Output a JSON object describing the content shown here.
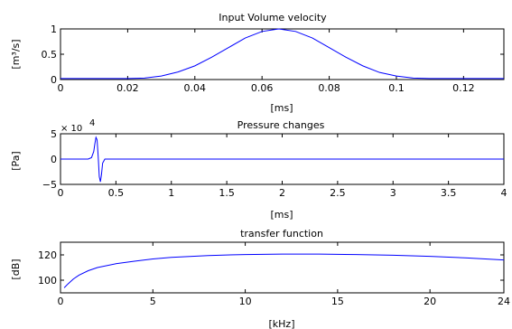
{
  "chart_data": [
    {
      "type": "line",
      "title": "Input Volume velocity",
      "xlabel": "[ms]",
      "ylabel": "[m³/s]",
      "xlim": [
        0,
        0.132
      ],
      "ylim": [
        0,
        1
      ],
      "xticks": [
        0,
        0.02,
        0.04,
        0.06,
        0.08,
        0.1,
        0.12
      ],
      "xtick_labels": [
        "0",
        "0.02",
        "0.04",
        "0.06",
        "0.08",
        "0.1",
        "0.12"
      ],
      "yticks": [
        0,
        0.5,
        1
      ],
      "ytick_labels": [
        "0",
        "0.5",
        "1"
      ],
      "grid": false,
      "color": "#0000ff",
      "series": [
        {
          "x": [
            0,
            0.005,
            0.01,
            0.015,
            0.02,
            0.025,
            0.03,
            0.035,
            0.04,
            0.045,
            0.05,
            0.055,
            0.06,
            0.065,
            0.07,
            0.075,
            0.08,
            0.085,
            0.09,
            0.095,
            0.1,
            0.105,
            0.11,
            0.115,
            0.12,
            0.125,
            0.132
          ],
          "values": [
            0.02,
            0.02,
            0.02,
            0.02,
            0.02,
            0.03,
            0.07,
            0.15,
            0.27,
            0.44,
            0.63,
            0.82,
            0.95,
            1.0,
            0.95,
            0.82,
            0.63,
            0.44,
            0.27,
            0.14,
            0.07,
            0.03,
            0.02,
            0.02,
            0.02,
            0.02,
            0.02
          ]
        }
      ]
    },
    {
      "type": "line",
      "title": "Pressure changes",
      "xlabel": "[ms]",
      "ylabel": "[Pa]",
      "y_exponent_base": "× 10",
      "y_exponent": "4",
      "xlim": [
        0,
        4
      ],
      "ylim": [
        -5,
        5
      ],
      "xticks": [
        0,
        0.5,
        1,
        1.5,
        2,
        2.5,
        3,
        3.5,
        4
      ],
      "xtick_labels": [
        "0",
        "0.5",
        "1",
        "1.5",
        "2",
        "2.5",
        "3",
        "3.5",
        "4"
      ],
      "yticks": [
        -5,
        0,
        5
      ],
      "ytick_labels": [
        "−5",
        "0",
        "5"
      ],
      "grid": false,
      "color": "#0000ff",
      "series": [
        {
          "x": [
            0,
            0.25,
            0.28,
            0.3,
            0.31,
            0.32,
            0.33,
            0.34,
            0.35,
            0.36,
            0.37,
            0.38,
            0.4,
            0.45,
            4
          ],
          "values": [
            0,
            0,
            0.3,
            1.5,
            3.0,
            4.3,
            3.8,
            0.5,
            -3.5,
            -4.5,
            -3.0,
            -0.8,
            0,
            0,
            0
          ]
        }
      ]
    },
    {
      "type": "line",
      "title": "transfer function",
      "xlabel": "[kHz]",
      "ylabel": "[dB]",
      "xlim": [
        0,
        24
      ],
      "ylim": [
        90,
        130
      ],
      "xticks": [
        0,
        5,
        10,
        15,
        20,
        24
      ],
      "xtick_labels": [
        "0",
        "5",
        "10",
        "15",
        "20",
        "24"
      ],
      "yticks": [
        100,
        120
      ],
      "ytick_labels": [
        "100",
        "120"
      ],
      "grid": false,
      "color": "#0000ff",
      "series": [
        {
          "x": [
            0.2,
            0.4,
            0.7,
            1,
            1.5,
            2,
            3,
            4,
            5,
            6,
            8,
            10,
            12,
            14,
            16,
            18,
            20,
            22,
            24
          ],
          "values": [
            94,
            97,
            101,
            104,
            107.5,
            110,
            113,
            115,
            116.8,
            118,
            119.5,
            120.3,
            120.6,
            120.6,
            120.3,
            119.7,
            118.8,
            117.6,
            116
          ]
        }
      ]
    }
  ]
}
